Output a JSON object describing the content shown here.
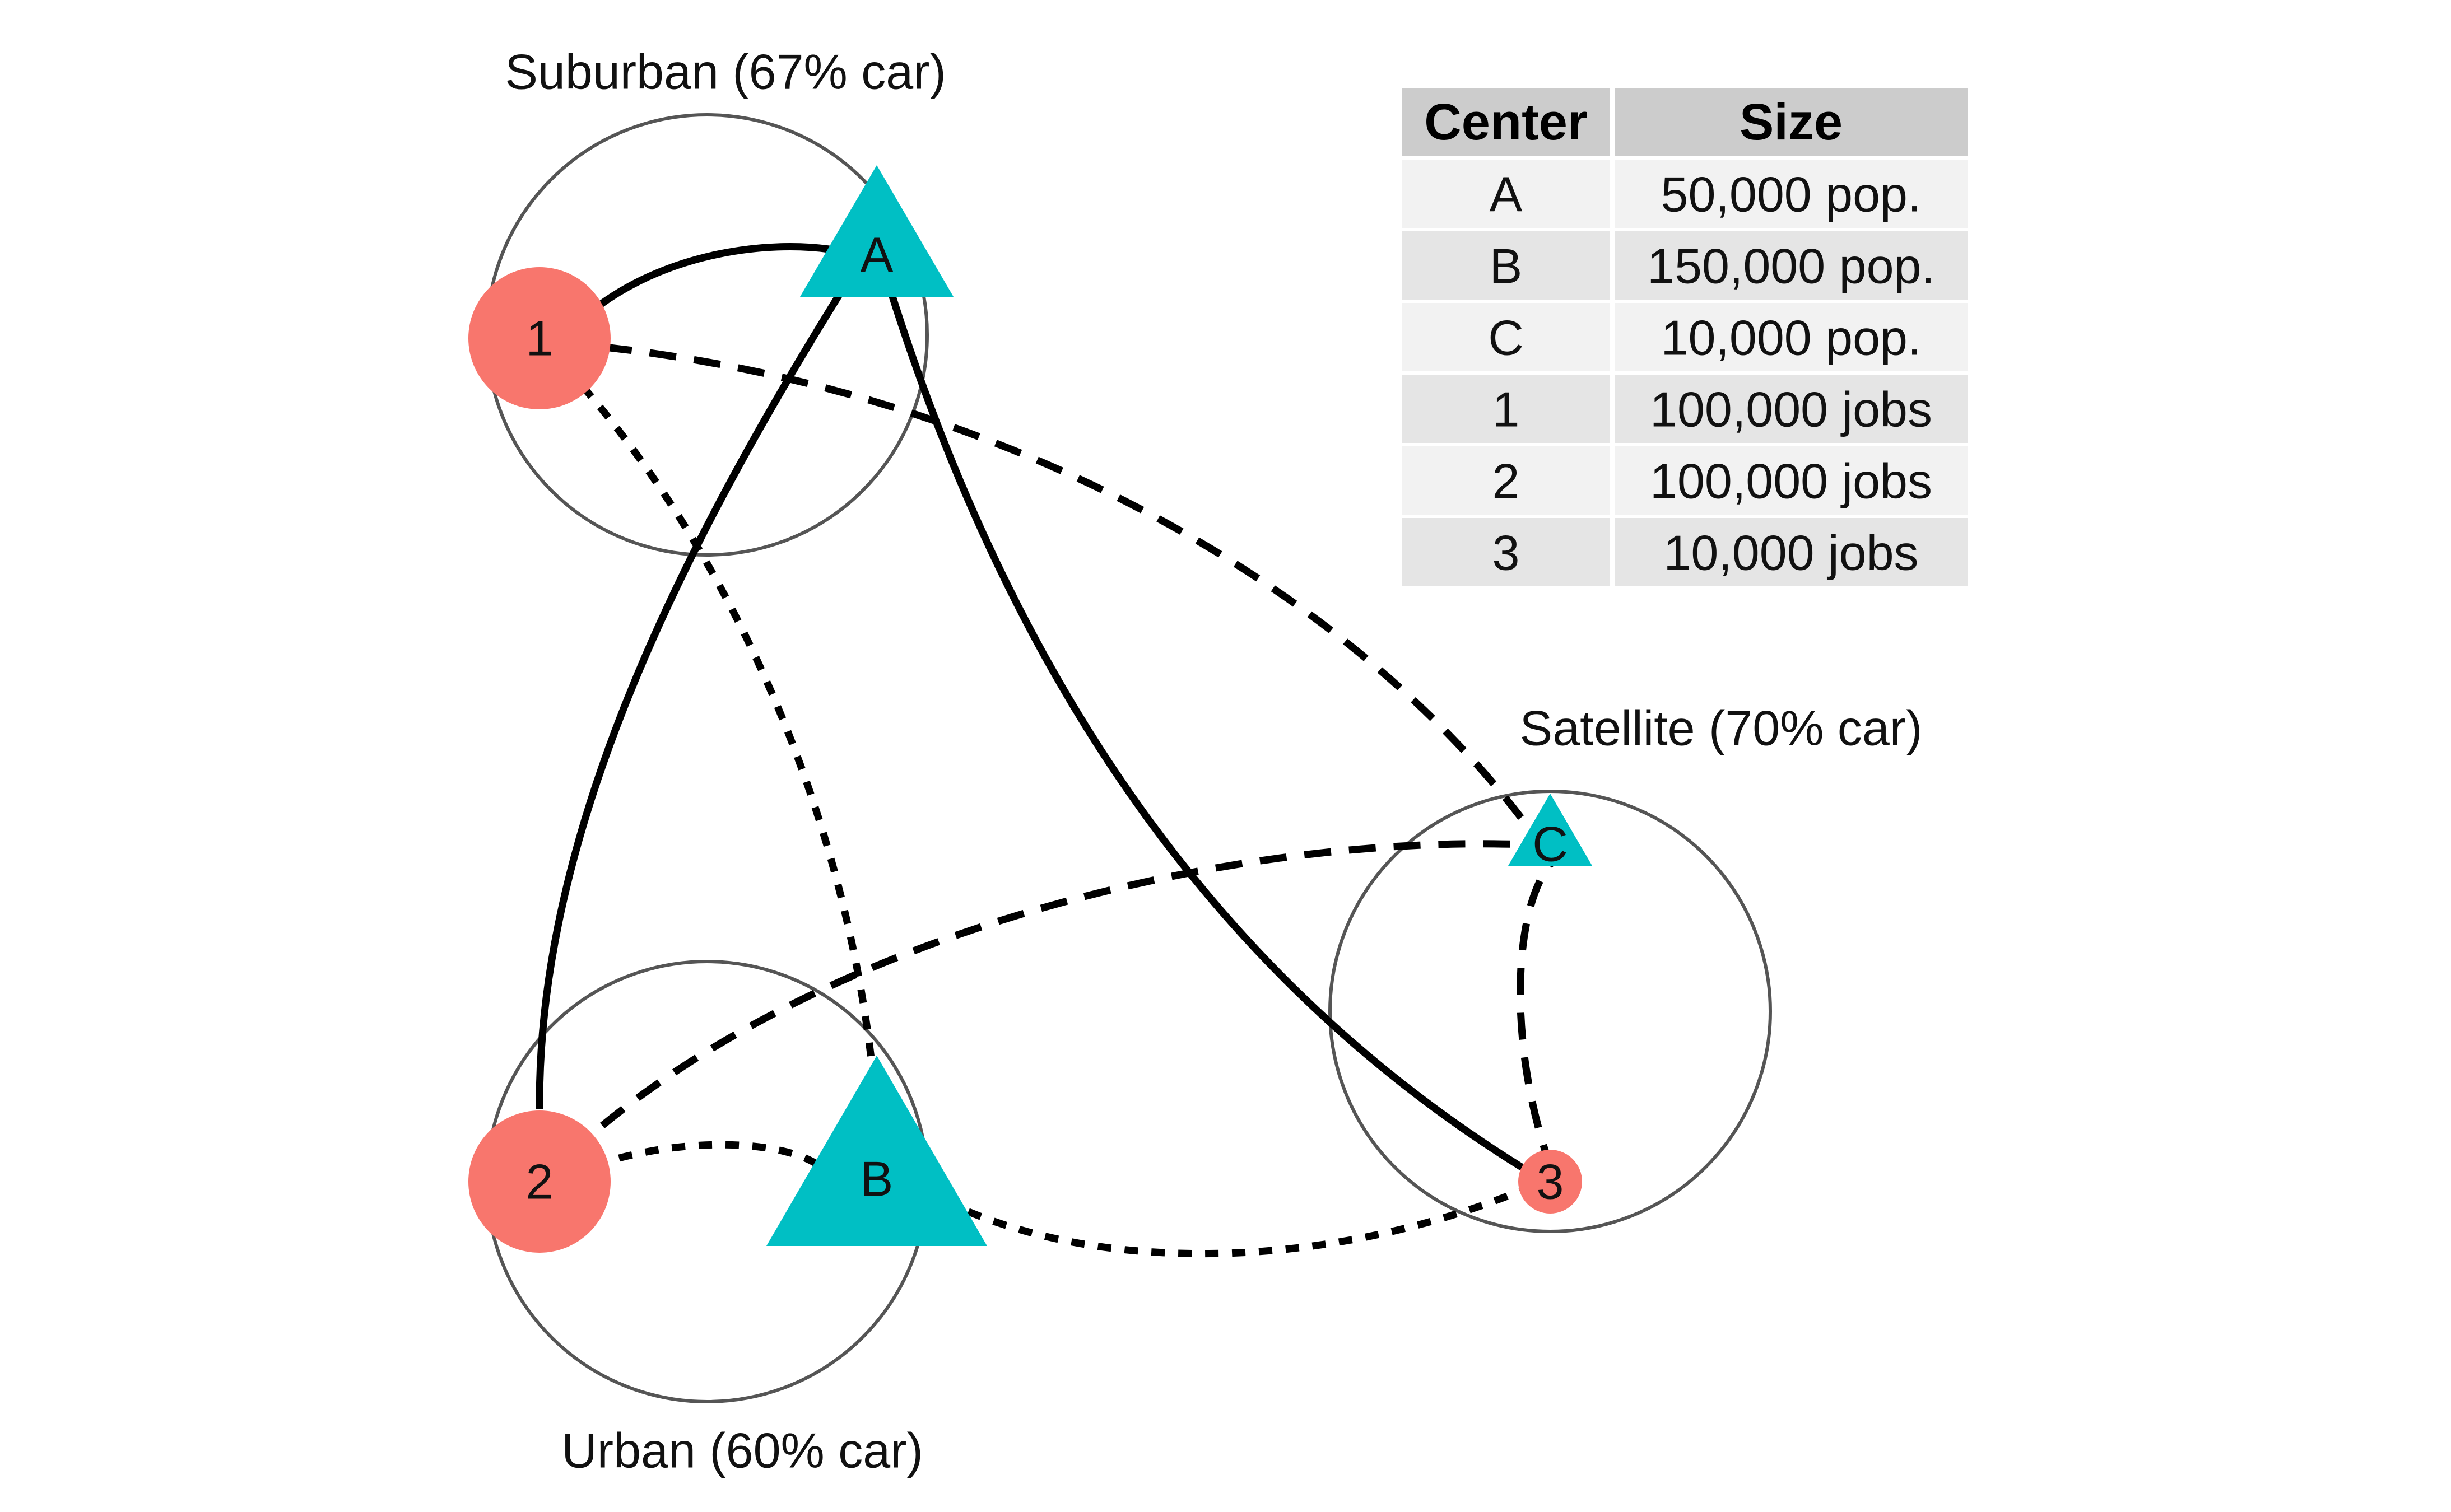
{
  "regions": [
    {
      "id": "suburban",
      "label": "Suburban (67% car)"
    },
    {
      "id": "urban",
      "label": "Urban (60% car)"
    },
    {
      "id": "satellite",
      "label": "Satellite (70% car)"
    }
  ],
  "nodes": [
    {
      "id": "A",
      "label": "A",
      "kind": "population",
      "shape": "triangle",
      "color": "#00BFC4"
    },
    {
      "id": "B",
      "label": "B",
      "kind": "population",
      "shape": "triangle",
      "color": "#00BFC4"
    },
    {
      "id": "C",
      "label": "C",
      "kind": "population",
      "shape": "triangle",
      "color": "#00BFC4"
    },
    {
      "id": "1",
      "label": "1",
      "kind": "jobs",
      "shape": "circle",
      "color": "#F8766D"
    },
    {
      "id": "2",
      "label": "2",
      "kind": "jobs",
      "shape": "circle",
      "color": "#F8766D"
    },
    {
      "id": "3",
      "label": "3",
      "kind": "jobs",
      "shape": "circle",
      "color": "#F8766D"
    }
  ],
  "links": [
    {
      "from": "1",
      "to": "A",
      "style": "solid"
    },
    {
      "from": "2",
      "to": "A",
      "style": "solid"
    },
    {
      "from": "3",
      "to": "A",
      "style": "solid"
    },
    {
      "from": "1",
      "to": "C",
      "style": "dashed"
    },
    {
      "from": "2",
      "to": "C",
      "style": "dashed"
    },
    {
      "from": "3",
      "to": "C",
      "style": "dashed"
    },
    {
      "from": "1",
      "to": "B",
      "style": "dotted"
    },
    {
      "from": "2",
      "to": "B",
      "style": "dotted"
    },
    {
      "from": "3",
      "to": "B",
      "style": "dotted"
    }
  ],
  "legend_table": {
    "headers": [
      "Center",
      "Size"
    ],
    "rows": [
      [
        "A",
        "50,000 pop."
      ],
      [
        "B",
        "150,000 pop."
      ],
      [
        "C",
        "10,000 pop."
      ],
      [
        "1",
        "100,000 jobs"
      ],
      [
        "2",
        "100,000 jobs"
      ],
      [
        "3",
        "10,000 jobs"
      ]
    ],
    "header_color": "#CCCCCC",
    "row_colors": [
      "#F2F2F2",
      "#E5E5E5"
    ]
  }
}
